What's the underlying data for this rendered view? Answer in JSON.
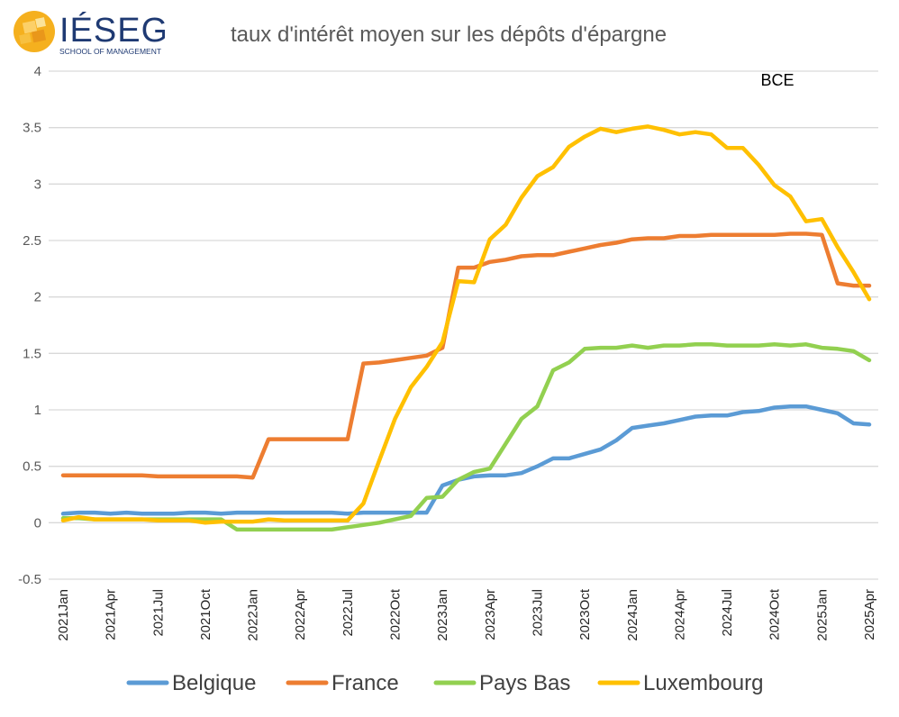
{
  "logo": {
    "brand": "IÉSEG",
    "subtitle": "SCHOOL OF MANAGEMENT",
    "colors": {
      "sun": "#f5b01e",
      "sun_dark": "#e9971a",
      "brand": "#1f3a73"
    }
  },
  "chart_data": {
    "type": "line",
    "title": "taux d'intérêt moyen sur les dépôts d'épargne",
    "annotation": "BCE",
    "xlabel": "",
    "ylabel": "",
    "ylim": [
      -0.5,
      4
    ],
    "yticks": [
      "4",
      "3.5",
      "3",
      "2.5",
      "2",
      "1.5",
      "1",
      "0.5",
      "0",
      "-0.5"
    ],
    "ytick_values": [
      4,
      3.5,
      3,
      2.5,
      2,
      1.5,
      1,
      0.5,
      0,
      -0.5
    ],
    "xtick_labels": [
      "2021Jan",
      "2021Apr",
      "2021Jul",
      "2021Oct",
      "2022Jan",
      "2022Apr",
      "2022Jul",
      "2022Oct",
      "2023Jan",
      "2023Apr",
      "2023Jul",
      "2023Oct",
      "2024Jan",
      "2024Apr",
      "2024Jul",
      "2024Oct",
      "2025Jan",
      "2025Apr"
    ],
    "x": [
      "2021Jan",
      "2021Feb",
      "2021Mar",
      "2021Apr",
      "2021May",
      "2021Jun",
      "2021Jul",
      "2021Aug",
      "2021Sep",
      "2021Oct",
      "2021Nov",
      "2021Dec",
      "2022Jan",
      "2022Feb",
      "2022Mar",
      "2022Apr",
      "2022May",
      "2022Jun",
      "2022Jul",
      "2022Aug",
      "2022Sep",
      "2022Oct",
      "2022Nov",
      "2022Dec",
      "2023Jan",
      "2023Feb",
      "2023Mar",
      "2023Apr",
      "2023May",
      "2023Jun",
      "2023Jul",
      "2023Aug",
      "2023Sep",
      "2023Oct",
      "2023Nov",
      "2023Dec",
      "2024Jan",
      "2024Feb",
      "2024Mar",
      "2024Apr",
      "2024May",
      "2024Jun",
      "2024Jul",
      "2024Aug",
      "2024Sep",
      "2024Oct",
      "2024Nov",
      "2024Dec",
      "2025Jan",
      "2025Feb",
      "2025Mar",
      "2025Apr"
    ],
    "grid": true,
    "legend_position": "bottom",
    "series": [
      {
        "name": "Belgique",
        "color": "#5b9bd5",
        "values": [
          0.08,
          0.09,
          0.09,
          0.08,
          0.09,
          0.08,
          0.08,
          0.08,
          0.09,
          0.09,
          0.08,
          0.09,
          0.09,
          0.09,
          0.09,
          0.09,
          0.09,
          0.09,
          0.08,
          0.09,
          0.09,
          0.09,
          0.09,
          0.09,
          0.33,
          0.38,
          0.41,
          0.42,
          0.42,
          0.44,
          0.5,
          0.57,
          0.57,
          0.61,
          0.65,
          0.73,
          0.84,
          0.86,
          0.88,
          0.91,
          0.94,
          0.95,
          0.95,
          0.98,
          0.99,
          1.02,
          1.03,
          1.03,
          1.0,
          0.97,
          0.88,
          0.87
        ]
      },
      {
        "name": "France",
        "color": "#ed7d31",
        "values": [
          0.42,
          0.42,
          0.42,
          0.42,
          0.42,
          0.42,
          0.41,
          0.41,
          0.41,
          0.41,
          0.41,
          0.41,
          0.4,
          0.74,
          0.74,
          0.74,
          0.74,
          0.74,
          0.74,
          1.41,
          1.42,
          1.44,
          1.46,
          1.48,
          1.55,
          2.26,
          2.26,
          2.31,
          2.33,
          2.36,
          2.37,
          2.37,
          2.4,
          2.43,
          2.46,
          2.48,
          2.51,
          2.52,
          2.52,
          2.54,
          2.54,
          2.55,
          2.55,
          2.55,
          2.55,
          2.55,
          2.56,
          2.56,
          2.55,
          2.12,
          2.1,
          2.1
        ]
      },
      {
        "name": "Pays Bas",
        "color": "#92d050",
        "values": [
          0.04,
          0.04,
          0.03,
          0.03,
          0.03,
          0.03,
          0.03,
          0.03,
          0.03,
          0.03,
          0.03,
          -0.06,
          -0.06,
          -0.06,
          -0.06,
          -0.06,
          -0.06,
          -0.06,
          -0.04,
          -0.02,
          0.0,
          0.03,
          0.06,
          0.22,
          0.23,
          0.38,
          0.45,
          0.48,
          0.7,
          0.92,
          1.03,
          1.35,
          1.42,
          1.54,
          1.55,
          1.55,
          1.57,
          1.55,
          1.57,
          1.57,
          1.58,
          1.58,
          1.57,
          1.57,
          1.57,
          1.58,
          1.57,
          1.58,
          1.55,
          1.54,
          1.52,
          1.44
        ]
      },
      {
        "name": "Luxembourg",
        "color": "#ffc000",
        "values": [
          0.02,
          0.05,
          0.03,
          0.03,
          0.03,
          0.03,
          0.02,
          0.02,
          0.02,
          0.0,
          0.01,
          0.01,
          0.01,
          0.03,
          0.02,
          0.02,
          0.02,
          0.02,
          0.02,
          0.17,
          0.55,
          0.92,
          1.2,
          1.38,
          1.6,
          2.14,
          2.13,
          2.51,
          2.64,
          2.88,
          3.07,
          3.15,
          3.33,
          3.42,
          3.49,
          3.46,
          3.49,
          3.51,
          3.48,
          3.44,
          3.46,
          3.44,
          3.32,
          3.32,
          3.17,
          2.99,
          2.89,
          2.67,
          2.69,
          2.44,
          2.22,
          1.98
        ]
      }
    ]
  }
}
